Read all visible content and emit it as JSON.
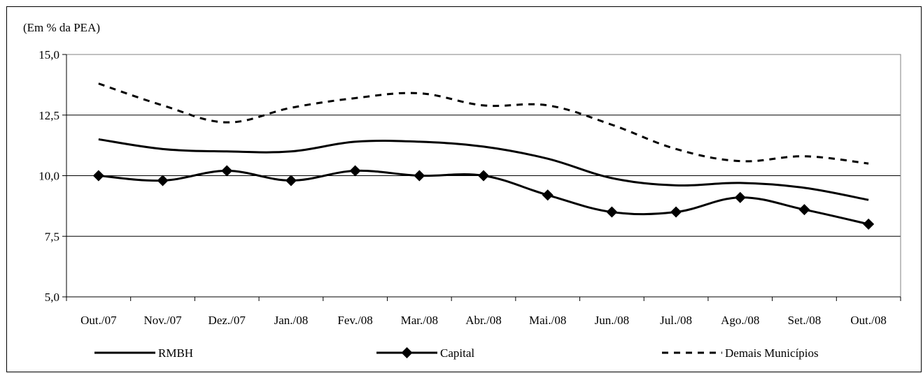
{
  "chart_data": {
    "type": "line",
    "title": "",
    "unit_label": "(Em % da PEA)",
    "xlabel": "",
    "ylabel": "",
    "categories": [
      "Out./07",
      "Nov./07",
      "Dez./07",
      "Jan./08",
      "Fev./08",
      "Mar./08",
      "Abr./08",
      "Mai./08",
      "Jun./08",
      "Jul./08",
      "Ago./08",
      "Set./08",
      "Out./08"
    ],
    "ylim": [
      5.0,
      15.0
    ],
    "yticks": [
      "5,0",
      "7,5",
      "10,0",
      "12,5",
      "15,0"
    ],
    "ytick_values": [
      5.0,
      7.5,
      10.0,
      12.5,
      15.0
    ],
    "grid": true,
    "legend_position": "bottom",
    "series": [
      {
        "name": "RMBH",
        "style": "solid",
        "marker": "none",
        "color": "#000000",
        "values": [
          11.5,
          11.1,
          11.0,
          11.0,
          11.4,
          11.4,
          11.2,
          10.7,
          9.9,
          9.6,
          9.7,
          9.5,
          9.0
        ]
      },
      {
        "name": "Capital",
        "style": "solid",
        "marker": "diamond",
        "color": "#000000",
        "values": [
          10.0,
          9.8,
          10.2,
          9.8,
          10.2,
          10.0,
          10.0,
          9.2,
          8.5,
          8.5,
          9.1,
          8.6,
          8.0
        ]
      },
      {
        "name": "Demais Municípios",
        "style": "dashed",
        "marker": "none",
        "color": "#000000",
        "values": [
          13.8,
          12.9,
          12.2,
          12.8,
          13.2,
          13.4,
          12.9,
          12.9,
          12.1,
          11.1,
          10.6,
          10.8,
          10.5
        ]
      }
    ]
  }
}
